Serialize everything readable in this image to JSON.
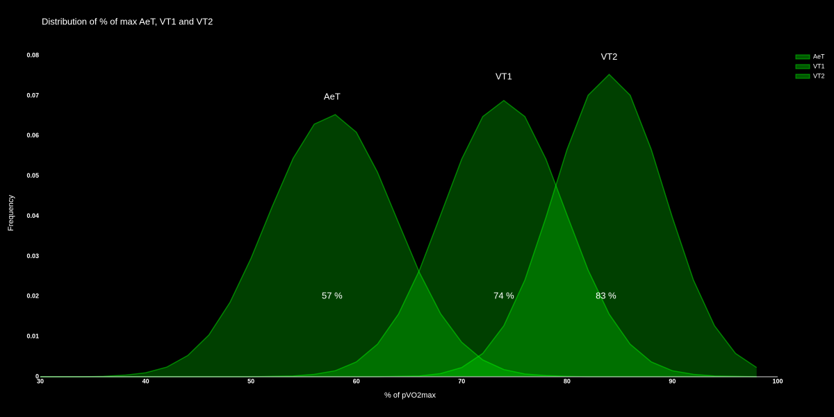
{
  "chart_data": {
    "type": "area",
    "title": "Distribution of % of max AeT, VT1 and VT2",
    "x_label": "% of pVO2max",
    "y_label": "Frequency",
    "x": [
      30,
      32,
      34,
      36,
      38,
      40,
      42,
      44,
      46,
      48,
      50,
      52,
      54,
      56,
      58,
      60,
      62,
      64,
      66,
      68,
      70,
      72,
      74,
      76,
      78,
      80,
      82,
      84,
      86,
      88,
      90,
      92,
      94,
      96,
      98
    ],
    "series": [
      {
        "name": "AeT",
        "color": "#00ff00",
        "values": [
          0,
          0,
          0,
          0.0001,
          0.0004,
          0.001,
          0.0024,
          0.0053,
          0.0104,
          0.0185,
          0.0295,
          0.0423,
          0.0544,
          0.0629,
          0.0653,
          0.0609,
          0.051,
          0.0384,
          0.0259,
          0.0157,
          0.0086,
          0.0042,
          0.0018,
          0.0007,
          0.0003,
          0.0001,
          0,
          0,
          0,
          0,
          0,
          0,
          0,
          0,
          0
        ]
      },
      {
        "name": "VT1",
        "color": "#00ff00",
        "values": [
          0,
          0,
          0,
          0,
          0,
          0,
          0,
          0,
          0,
          0,
          0,
          0.0001,
          0.0002,
          0.0006,
          0.0015,
          0.0037,
          0.0081,
          0.0156,
          0.0266,
          0.0403,
          0.0542,
          0.0648,
          0.0688,
          0.0648,
          0.0542,
          0.0403,
          0.0266,
          0.0156,
          0.0081,
          0.0037,
          0.0015,
          0.0006,
          0.0002,
          0.0001,
          0
        ]
      },
      {
        "name": "VT2",
        "color": "#00ff00",
        "values": [
          0,
          0,
          0,
          0,
          0,
          0,
          0,
          0,
          0,
          0,
          0,
          0,
          0,
          0,
          0,
          0,
          0,
          0.0001,
          0.0002,
          0.0008,
          0.0023,
          0.0058,
          0.0127,
          0.0241,
          0.0397,
          0.0566,
          0.0701,
          0.0753,
          0.0701,
          0.0566,
          0.0397,
          0.0241,
          0.0127,
          0.0058,
          0.0023
        ]
      }
    ],
    "annotations": [
      {
        "text": "AeT",
        "x": 57.7,
        "y": 0.0696
      },
      {
        "text": "VT1",
        "x": 74,
        "y": 0.0746
      },
      {
        "text": "VT2",
        "x": 84,
        "y": 0.0796
      },
      {
        "text": "57 %",
        "x": 57.7,
        "y": 0.02
      },
      {
        "text": "74 %",
        "x": 74,
        "y": 0.02
      },
      {
        "text": "83 %",
        "x": 83.7,
        "y": 0.02
      }
    ],
    "xlim": [
      30,
      100
    ],
    "ylim": [
      0,
      0.08
    ],
    "xticks": [
      30,
      40,
      50,
      60,
      70,
      80,
      90,
      100
    ],
    "yticks": [
      0,
      0.01,
      0.02,
      0.03,
      0.04,
      0.05,
      0.06,
      0.07,
      0.08
    ],
    "grid": false,
    "legend": "top-right"
  }
}
